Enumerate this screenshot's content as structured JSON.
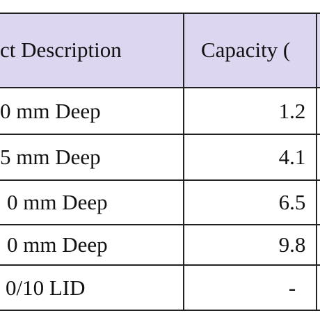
{
  "table": {
    "header": [
      "ct Description",
      "Capacity ("
    ],
    "rows": [
      [
        "0 mm Deep",
        "1.2"
      ],
      [
        "5 mm Deep",
        "4.1"
      ],
      [
        "0 mm Deep",
        "6.5"
      ],
      [
        "0 mm Deep",
        "9.8"
      ],
      [
        "0/10 LID",
        "-"
      ]
    ]
  }
}
